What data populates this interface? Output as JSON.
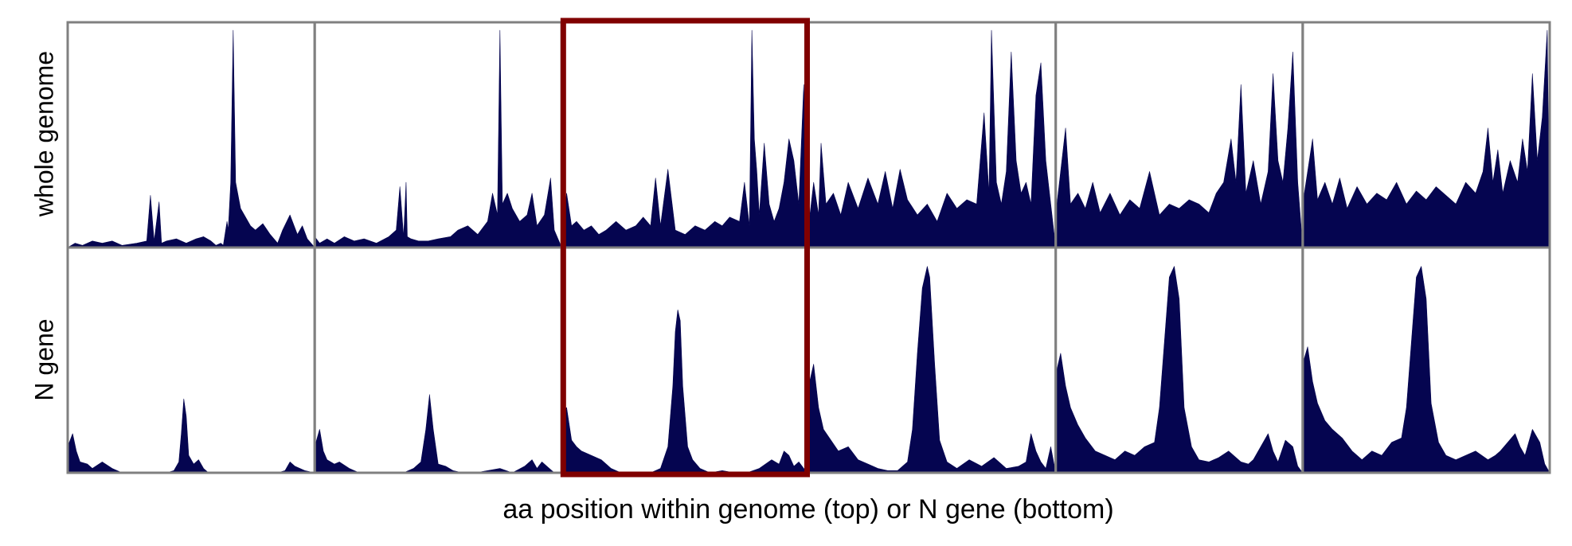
{
  "figure": {
    "xlabel": "aa position within genome (top) or N gene (bottom)",
    "row_labels": [
      "whole genome",
      "N gene"
    ],
    "panel_count": 6,
    "highlighted_panel": 3
  },
  "colors": {
    "fill": "#050550",
    "frame": "#808080",
    "highlight": "#800000",
    "background": "#ffffff"
  },
  "chart_data": [
    {
      "type": "area",
      "row": "whole genome",
      "panels": [
        {
          "panel": 1,
          "x": [
            0.0,
            0.03,
            0.06,
            0.1,
            0.14,
            0.18,
            0.22,
            0.28,
            0.32,
            0.335,
            0.35,
            0.37,
            0.38,
            0.4,
            0.44,
            0.48,
            0.52,
            0.55,
            0.58,
            0.6,
            0.62,
            0.63,
            0.645,
            0.65,
            0.66,
            0.67,
            0.68,
            0.7,
            0.72,
            0.74,
            0.76,
            0.79,
            0.82,
            0.85,
            0.87,
            0.9,
            0.93,
            0.95,
            0.97,
            1.0
          ],
          "y": [
            0.0,
            0.02,
            0.01,
            0.03,
            0.02,
            0.03,
            0.01,
            0.02,
            0.03,
            0.24,
            0.03,
            0.21,
            0.02,
            0.03,
            0.04,
            0.02,
            0.04,
            0.05,
            0.03,
            0.01,
            0.02,
            0.01,
            0.12,
            0.08,
            0.3,
            1.0,
            0.3,
            0.18,
            0.14,
            0.1,
            0.08,
            0.11,
            0.06,
            0.02,
            0.08,
            0.15,
            0.06,
            0.1,
            0.04,
            0.0
          ]
        },
        {
          "panel": 2,
          "x": [
            0.0,
            0.02,
            0.05,
            0.08,
            0.12,
            0.16,
            0.2,
            0.25,
            0.3,
            0.33,
            0.345,
            0.36,
            0.37,
            0.375,
            0.39,
            0.42,
            0.46,
            0.5,
            0.55,
            0.58,
            0.62,
            0.66,
            0.7,
            0.72,
            0.74,
            0.75,
            0.76,
            0.78,
            0.8,
            0.83,
            0.86,
            0.88,
            0.9,
            0.93,
            0.955,
            0.97,
            1.0
          ],
          "y": [
            0.05,
            0.02,
            0.04,
            0.02,
            0.05,
            0.03,
            0.04,
            0.02,
            0.05,
            0.08,
            0.28,
            0.05,
            0.3,
            0.05,
            0.04,
            0.03,
            0.03,
            0.04,
            0.05,
            0.08,
            0.1,
            0.06,
            0.12,
            0.25,
            0.15,
            1.0,
            0.2,
            0.25,
            0.18,
            0.12,
            0.15,
            0.25,
            0.1,
            0.15,
            0.32,
            0.08,
            0.0
          ]
        },
        {
          "panel": 3,
          "x": [
            0.0,
            0.02,
            0.04,
            0.06,
            0.09,
            0.12,
            0.15,
            0.18,
            0.22,
            0.26,
            0.3,
            0.33,
            0.36,
            0.38,
            0.4,
            0.43,
            0.46,
            0.5,
            0.54,
            0.58,
            0.62,
            0.65,
            0.68,
            0.72,
            0.74,
            0.76,
            0.77,
            0.78,
            0.79,
            0.8,
            0.82,
            0.84,
            0.86,
            0.88,
            0.9,
            0.92,
            0.94,
            0.96,
            0.98,
            1.0
          ],
          "y": [
            0.08,
            0.25,
            0.1,
            0.12,
            0.08,
            0.1,
            0.06,
            0.08,
            0.12,
            0.08,
            0.1,
            0.14,
            0.1,
            0.32,
            0.1,
            0.36,
            0.08,
            0.06,
            0.1,
            0.08,
            0.12,
            0.1,
            0.14,
            0.12,
            0.3,
            0.1,
            1.0,
            0.5,
            0.35,
            0.15,
            0.48,
            0.2,
            0.12,
            0.18,
            0.3,
            0.5,
            0.4,
            0.2,
            0.75,
            0.0
          ]
        },
        {
          "panel": 4,
          "x": [
            0.0,
            0.02,
            0.04,
            0.05,
            0.07,
            0.1,
            0.13,
            0.16,
            0.2,
            0.24,
            0.28,
            0.31,
            0.34,
            0.37,
            0.4,
            0.44,
            0.48,
            0.52,
            0.56,
            0.6,
            0.64,
            0.68,
            0.71,
            0.73,
            0.74,
            0.76,
            0.78,
            0.8,
            0.82,
            0.84,
            0.86,
            0.88,
            0.9,
            0.92,
            0.94,
            0.96,
            0.98,
            1.0
          ],
          "y": [
            0.1,
            0.3,
            0.15,
            0.48,
            0.2,
            0.25,
            0.15,
            0.3,
            0.18,
            0.32,
            0.2,
            0.35,
            0.18,
            0.36,
            0.22,
            0.15,
            0.2,
            0.12,
            0.25,
            0.18,
            0.22,
            0.2,
            0.62,
            0.25,
            1.0,
            0.3,
            0.2,
            0.35,
            0.9,
            0.4,
            0.25,
            0.3,
            0.2,
            0.7,
            0.85,
            0.4,
            0.2,
            0.0
          ]
        },
        {
          "panel": 5,
          "x": [
            0.0,
            0.02,
            0.04,
            0.06,
            0.09,
            0.12,
            0.15,
            0.18,
            0.22,
            0.26,
            0.3,
            0.34,
            0.38,
            0.42,
            0.46,
            0.5,
            0.54,
            0.58,
            0.62,
            0.65,
            0.68,
            0.71,
            0.73,
            0.75,
            0.77,
            0.8,
            0.83,
            0.86,
            0.88,
            0.9,
            0.92,
            0.94,
            0.96,
            0.98,
            1.0
          ],
          "y": [
            0.15,
            0.35,
            0.55,
            0.2,
            0.25,
            0.18,
            0.3,
            0.16,
            0.25,
            0.15,
            0.22,
            0.18,
            0.35,
            0.15,
            0.2,
            0.18,
            0.22,
            0.2,
            0.16,
            0.25,
            0.3,
            0.5,
            0.3,
            0.75,
            0.25,
            0.4,
            0.2,
            0.35,
            0.8,
            0.4,
            0.3,
            0.55,
            0.9,
            0.3,
            0.0
          ]
        },
        {
          "panel": 6,
          "x": [
            0.0,
            0.02,
            0.04,
            0.06,
            0.09,
            0.12,
            0.15,
            0.18,
            0.22,
            0.26,
            0.3,
            0.34,
            0.38,
            0.42,
            0.46,
            0.5,
            0.54,
            0.58,
            0.62,
            0.66,
            0.7,
            0.73,
            0.75,
            0.77,
            0.79,
            0.81,
            0.84,
            0.87,
            0.89,
            0.91,
            0.93,
            0.95,
            0.97,
            0.99,
            1.0
          ],
          "y": [
            0.2,
            0.35,
            0.5,
            0.22,
            0.3,
            0.2,
            0.32,
            0.18,
            0.28,
            0.2,
            0.25,
            0.22,
            0.3,
            0.2,
            0.26,
            0.22,
            0.28,
            0.24,
            0.2,
            0.3,
            0.25,
            0.35,
            0.55,
            0.3,
            0.45,
            0.25,
            0.4,
            0.3,
            0.5,
            0.35,
            0.8,
            0.4,
            0.6,
            1.0,
            0.0
          ]
        }
      ]
    },
    {
      "type": "area",
      "row": "N gene",
      "panels": [
        {
          "panel": 1,
          "x": [
            0.0,
            0.02,
            0.035,
            0.05,
            0.08,
            0.1,
            0.14,
            0.18,
            0.22,
            0.26,
            0.3,
            0.36,
            0.4,
            0.43,
            0.45,
            0.46,
            0.47,
            0.48,
            0.49,
            0.51,
            0.53,
            0.55,
            0.57,
            0.6,
            0.65,
            0.7,
            0.75,
            0.8,
            0.85,
            0.88,
            0.9,
            0.92,
            0.96,
            1.0
          ],
          "y": [
            0.12,
            0.18,
            0.1,
            0.05,
            0.04,
            0.02,
            0.05,
            0.02,
            0.0,
            0.0,
            0.0,
            0.0,
            0.0,
            0.01,
            0.05,
            0.18,
            0.34,
            0.26,
            0.08,
            0.04,
            0.06,
            0.02,
            0.0,
            0.0,
            0.0,
            0.0,
            0.0,
            0.0,
            0.0,
            0.01,
            0.05,
            0.03,
            0.01,
            0.0
          ]
        },
        {
          "panel": 2,
          "x": [
            0.0,
            0.02,
            0.035,
            0.05,
            0.08,
            0.1,
            0.14,
            0.18,
            0.22,
            0.26,
            0.3,
            0.36,
            0.4,
            0.43,
            0.45,
            0.465,
            0.48,
            0.5,
            0.53,
            0.56,
            0.6,
            0.65,
            0.7,
            0.75,
            0.8,
            0.85,
            0.88,
            0.9,
            0.92,
            0.95,
            0.97,
            1.0
          ],
          "y": [
            0.12,
            0.2,
            0.1,
            0.06,
            0.04,
            0.05,
            0.02,
            0.0,
            0.0,
            0.0,
            0.0,
            0.0,
            0.02,
            0.05,
            0.2,
            0.36,
            0.2,
            0.04,
            0.03,
            0.01,
            0.0,
            0.0,
            0.01,
            0.02,
            0.0,
            0.03,
            0.06,
            0.02,
            0.05,
            0.02,
            0.0,
            0.0
          ]
        },
        {
          "panel": 3,
          "x": [
            0.0,
            0.02,
            0.04,
            0.06,
            0.08,
            0.12,
            0.16,
            0.2,
            0.24,
            0.28,
            0.32,
            0.36,
            0.4,
            0.43,
            0.45,
            0.46,
            0.47,
            0.48,
            0.49,
            0.51,
            0.53,
            0.56,
            0.6,
            0.65,
            0.7,
            0.75,
            0.8,
            0.85,
            0.88,
            0.9,
            0.92,
            0.94,
            0.96,
            0.98,
            1.0
          ],
          "y": [
            0.28,
            0.3,
            0.15,
            0.12,
            0.1,
            0.08,
            0.06,
            0.02,
            0.0,
            0.0,
            0.0,
            0.0,
            0.02,
            0.12,
            0.4,
            0.65,
            0.75,
            0.7,
            0.4,
            0.12,
            0.06,
            0.02,
            0.0,
            0.01,
            0.0,
            0.0,
            0.02,
            0.06,
            0.04,
            0.1,
            0.08,
            0.03,
            0.05,
            0.02,
            0.0
          ]
        },
        {
          "panel": 4,
          "x": [
            0.0,
            0.02,
            0.04,
            0.06,
            0.09,
            0.12,
            0.16,
            0.2,
            0.24,
            0.28,
            0.32,
            0.36,
            0.4,
            0.42,
            0.44,
            0.46,
            0.48,
            0.49,
            0.51,
            0.53,
            0.56,
            0.6,
            0.65,
            0.7,
            0.75,
            0.8,
            0.85,
            0.88,
            0.9,
            0.92,
            0.94,
            0.96,
            0.98,
            1.0
          ],
          "y": [
            0.4,
            0.5,
            0.3,
            0.2,
            0.15,
            0.1,
            0.12,
            0.06,
            0.04,
            0.02,
            0.01,
            0.01,
            0.05,
            0.2,
            0.55,
            0.85,
            0.95,
            0.9,
            0.5,
            0.15,
            0.05,
            0.02,
            0.06,
            0.03,
            0.07,
            0.02,
            0.03,
            0.05,
            0.18,
            0.1,
            0.05,
            0.02,
            0.12,
            0.0
          ]
        },
        {
          "panel": 5,
          "x": [
            0.0,
            0.02,
            0.04,
            0.06,
            0.09,
            0.12,
            0.16,
            0.2,
            0.24,
            0.28,
            0.32,
            0.36,
            0.4,
            0.42,
            0.44,
            0.46,
            0.48,
            0.5,
            0.52,
            0.55,
            0.58,
            0.62,
            0.66,
            0.7,
            0.75,
            0.78,
            0.8,
            0.83,
            0.86,
            0.88,
            0.9,
            0.93,
            0.96,
            0.98,
            1.0
          ],
          "y": [
            0.45,
            0.55,
            0.4,
            0.3,
            0.22,
            0.16,
            0.1,
            0.08,
            0.06,
            0.1,
            0.08,
            0.12,
            0.14,
            0.3,
            0.6,
            0.9,
            0.95,
            0.8,
            0.3,
            0.12,
            0.06,
            0.05,
            0.07,
            0.1,
            0.05,
            0.04,
            0.06,
            0.12,
            0.18,
            0.1,
            0.05,
            0.15,
            0.12,
            0.03,
            0.0
          ]
        },
        {
          "panel": 6,
          "x": [
            0.0,
            0.02,
            0.04,
            0.06,
            0.09,
            0.12,
            0.16,
            0.2,
            0.24,
            0.28,
            0.32,
            0.36,
            0.4,
            0.42,
            0.44,
            0.46,
            0.48,
            0.5,
            0.52,
            0.55,
            0.58,
            0.62,
            0.66,
            0.7,
            0.75,
            0.78,
            0.8,
            0.83,
            0.86,
            0.88,
            0.9,
            0.93,
            0.96,
            0.98,
            1.0
          ],
          "y": [
            0.5,
            0.58,
            0.42,
            0.32,
            0.24,
            0.2,
            0.16,
            0.1,
            0.06,
            0.1,
            0.08,
            0.14,
            0.16,
            0.3,
            0.6,
            0.9,
            0.95,
            0.8,
            0.32,
            0.14,
            0.08,
            0.06,
            0.08,
            0.1,
            0.06,
            0.08,
            0.1,
            0.14,
            0.18,
            0.12,
            0.08,
            0.2,
            0.14,
            0.04,
            0.0
          ]
        }
      ]
    }
  ]
}
